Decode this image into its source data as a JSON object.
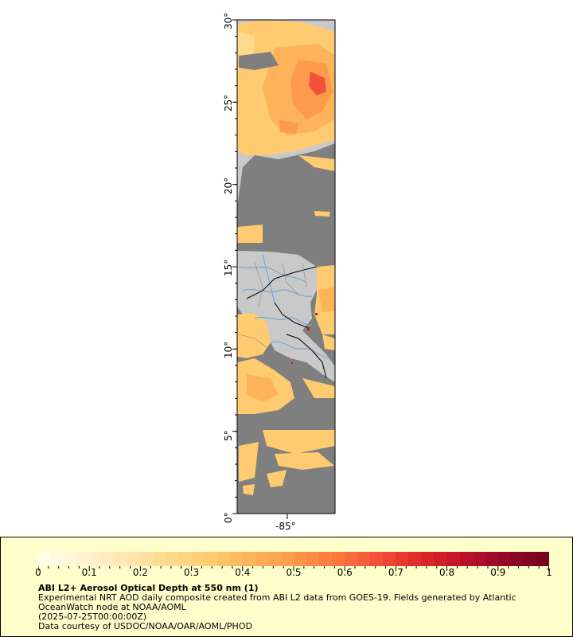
{
  "map": {
    "lat_labels": [
      "0°",
      "5°",
      "10°",
      "15°",
      "20°",
      "25°",
      "30°"
    ],
    "lon_labels": [
      "-85°"
    ],
    "colors": {
      "land": "#c9c9c9",
      "ocean_nodata": "#7f7f7f",
      "border": "#000000",
      "rivers": "#6aa0d8"
    }
  },
  "legend": {
    "tick_labels": [
      "0",
      "0.1",
      "0.2",
      "0.3",
      "0.4",
      "0.5",
      "0.6",
      "0.7",
      "0.8",
      "0.9",
      "1"
    ],
    "colormap": [
      "#ffffe8",
      "#fff2d0",
      "#ffe6b0",
      "#ffd98d",
      "#fecb70",
      "#fdb35a",
      "#fd9a4b",
      "#fc7a3e",
      "#f2523a",
      "#e02a2a",
      "#c1122a",
      "#96092b",
      "#7a0020"
    ],
    "title": "ABI L2+ Aerosol Optical Depth at 550 nm (1)",
    "line1": "Experimental NRT AOD daily composite created from ABI L2 data from GOES-19. Fields generated by Atlantic",
    "line2": "OceanWatch node at NOAA/AOML",
    "line3": "(2025-07-25T00:00:00Z)",
    "line4": "Data courtesy of USDOC/NOAA/OAR/AOML/PHOD"
  }
}
